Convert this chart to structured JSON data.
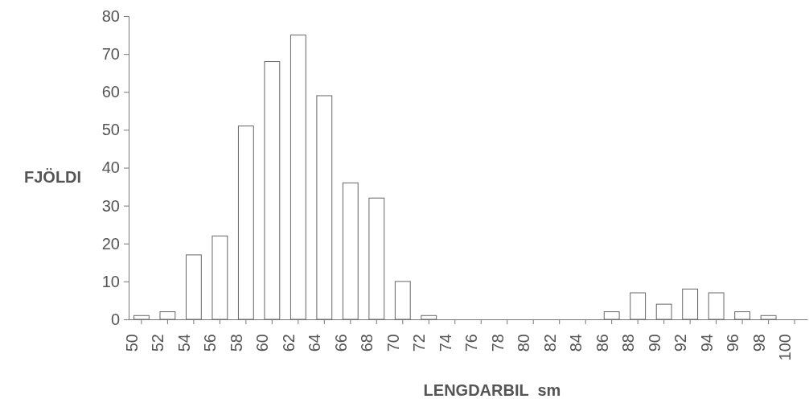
{
  "chart_data": {
    "type": "bar",
    "xlabel": "LENGDARBIL  sm",
    "ylabel": "FJÖLDI",
    "categories": [
      "50",
      "52",
      "54",
      "56",
      "58",
      "60",
      "62",
      "64",
      "66",
      "68",
      "70",
      "72",
      "74",
      "76",
      "78",
      "80",
      "82",
      "84",
      "86",
      "88",
      "90",
      "92",
      "94",
      "96",
      "98",
      "100"
    ],
    "values": [
      1,
      2,
      17,
      22,
      51,
      68,
      75,
      59,
      36,
      32,
      10,
      1,
      0,
      0,
      0,
      0,
      0,
      0,
      2,
      7,
      4,
      8,
      7,
      2,
      1,
      0
    ],
    "color": "#ffffff",
    "ylim": [
      0,
      80
    ],
    "yticks": [
      0,
      10,
      20,
      30,
      40,
      50,
      60,
      70,
      80
    ],
    "grid": false
  }
}
